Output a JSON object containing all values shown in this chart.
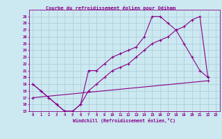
{
  "title": "Courbe du refroidissement éolien pour Odiham",
  "xlabel": "Windchill (Refroidissement éolien,°C)",
  "bg_color": "#cce8f0",
  "grid_color": "#a8ccd8",
  "line_color": "#880088",
  "xlim": [
    -0.5,
    23.5
  ],
  "ylim": [
    15,
    30
  ],
  "xticks": [
    0,
    1,
    2,
    3,
    4,
    5,
    6,
    7,
    8,
    9,
    10,
    11,
    12,
    13,
    14,
    15,
    16,
    17,
    18,
    19,
    20,
    21,
    22,
    23
  ],
  "yticks": [
    15,
    16,
    17,
    18,
    19,
    20,
    21,
    22,
    23,
    24,
    25,
    26,
    27,
    28,
    29
  ],
  "lines": [
    {
      "x": [
        0,
        1,
        2,
        3,
        4,
        5,
        6,
        7,
        8,
        9,
        10,
        11,
        12,
        13,
        14,
        15,
        16,
        17,
        18,
        19,
        20,
        21,
        22
      ],
      "y": [
        19,
        18,
        17,
        16,
        15,
        15,
        16,
        21,
        21,
        22,
        23,
        23.5,
        24,
        24.5,
        26,
        29,
        29,
        28,
        27,
        25,
        23,
        21,
        20
      ]
    },
    {
      "x": [
        0,
        1,
        2,
        3,
        4,
        5,
        6,
        7,
        8,
        9,
        10,
        11,
        12,
        13,
        14,
        15,
        16,
        17,
        18,
        19,
        20,
        21,
        22
      ],
      "y": [
        19,
        18,
        17,
        16,
        15,
        15,
        16,
        18,
        19,
        20,
        21,
        21.5,
        22,
        23,
        24,
        25,
        25.5,
        26,
        27,
        27.5,
        28.5,
        29,
        20
      ]
    },
    {
      "x": [
        0,
        22
      ],
      "y": [
        17,
        19.5
      ]
    }
  ]
}
